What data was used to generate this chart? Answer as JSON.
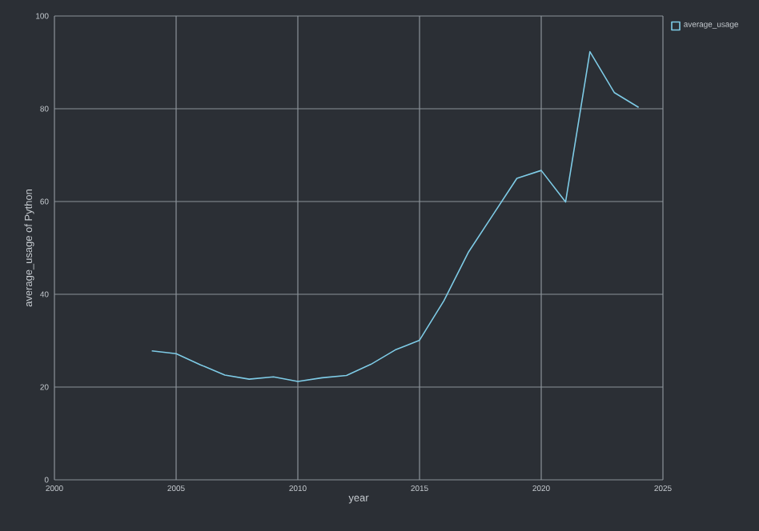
{
  "chart_data": {
    "type": "line",
    "xlabel": "year",
    "ylabel": "average_usage of Python",
    "x": [
      2004,
      2005,
      2006,
      2007,
      2008,
      2009,
      2010,
      2011,
      2012,
      2013,
      2014,
      2015,
      2016,
      2017,
      2018,
      2019,
      2020,
      2021,
      2022,
      2023,
      2024
    ],
    "series": [
      {
        "name": "average_usage",
        "color": "#7ecbe6",
        "values": [
          27.8,
          27.2,
          24.8,
          22.6,
          21.7,
          22.2,
          21.2,
          22.0,
          22.5,
          24.9,
          28.0,
          30.1,
          38.6,
          49.0,
          57.0,
          65.0,
          66.7,
          59.9,
          92.3,
          83.5,
          80.3
        ]
      }
    ],
    "xlim": [
      2000,
      2025
    ],
    "ylim": [
      0,
      100
    ],
    "xticks": [
      2000,
      2005,
      2010,
      2015,
      2020,
      2025
    ],
    "yticks": [
      0,
      20,
      40,
      60,
      80,
      100
    ],
    "grid": true,
    "legend": "top right"
  }
}
